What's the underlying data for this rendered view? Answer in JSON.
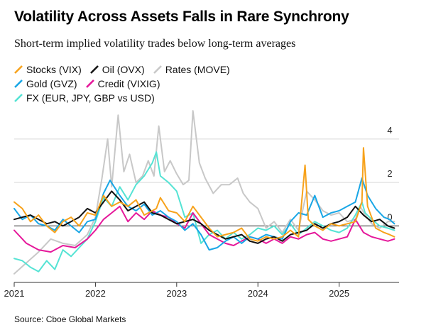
{
  "title": "Volatility Across Assets Falls in Rare Synchrony",
  "subtitle": "Short-term implied volatility trades below long-term averages",
  "source": "Source: Cboe Global Markets",
  "chart_data": {
    "type": "line",
    "xlabel": "",
    "ylabel": "",
    "xlim": [
      2021.0,
      2025.72
    ],
    "ylim": [
      -2.6,
      5.5
    ],
    "grid": true,
    "legend_position": "top-left",
    "yticks": [
      0,
      2,
      4
    ],
    "ytick_labels": [
      "0",
      "2",
      "4"
    ],
    "xticks": [
      2021,
      2022,
      2023,
      2024,
      2025
    ],
    "xtick_labels": [
      "2021",
      "2022",
      "2023",
      "2024",
      "2025"
    ],
    "series": [
      {
        "name": "Rates (MOVE)",
        "color": "#c8c8c8",
        "x": [
          2021.0,
          2021.15,
          2021.3,
          2021.45,
          2021.6,
          2021.75,
          2021.9,
          2022.0,
          2022.08,
          2022.15,
          2022.2,
          2022.28,
          2022.35,
          2022.42,
          2022.5,
          2022.58,
          2022.65,
          2022.72,
          2022.78,
          2022.85,
          2022.92,
          2023.0,
          2023.08,
          2023.15,
          2023.2,
          2023.28,
          2023.35,
          2023.45,
          2023.55,
          2023.65,
          2023.75,
          2023.82,
          2023.9,
          2024.0,
          2024.1,
          2024.2,
          2024.3,
          2024.4,
          2024.5,
          2024.6,
          2024.7,
          2024.8,
          2024.9,
          2025.0,
          2025.1,
          2025.2,
          2025.26,
          2025.32,
          2025.4,
          2025.5,
          2025.6,
          2025.68
        ],
        "values": [
          -2.2,
          -1.7,
          -1.2,
          -0.6,
          -0.8,
          -0.9,
          -0.4,
          0.4,
          2.2,
          4.0,
          1.8,
          5.1,
          2.5,
          3.3,
          2.0,
          2.3,
          3.0,
          2.3,
          4.6,
          2.5,
          3.0,
          2.4,
          1.9,
          2.1,
          5.3,
          2.9,
          2.2,
          1.5,
          1.9,
          1.9,
          2.2,
          1.5,
          1.1,
          0.8,
          -0.1,
          0.2,
          -0.3,
          0.3,
          -0.2,
          1.6,
          1.2,
          0.7,
          0.5,
          0.6,
          0.2,
          0.3,
          0.9,
          0.5,
          0.1,
          -0.1,
          0.2,
          0.2
        ]
      },
      {
        "name": "FX (EUR, JPY, GBP vs USD)",
        "color": "#55e3d4",
        "x": [
          2021.0,
          2021.1,
          2021.2,
          2021.3,
          2021.4,
          2021.5,
          2021.6,
          2021.7,
          2021.8,
          2021.9,
          2022.0,
          2022.1,
          2022.2,
          2022.3,
          2022.4,
          2022.5,
          2022.6,
          2022.7,
          2022.75,
          2022.8,
          2022.9,
          2023.0,
          2023.1,
          2023.2,
          2023.3,
          2023.4,
          2023.5,
          2023.6,
          2023.7,
          2023.8,
          2023.9,
          2024.0,
          2024.1,
          2024.2,
          2024.3,
          2024.4,
          2024.5,
          2024.6,
          2024.7,
          2024.8,
          2024.9,
          2025.0,
          2025.1,
          2025.2,
          2025.28,
          2025.32,
          2025.4,
          2025.5,
          2025.6,
          2025.68
        ],
        "values": [
          -1.5,
          -1.6,
          -1.9,
          -2.1,
          -1.6,
          -2.0,
          -1.1,
          -1.4,
          -1.0,
          -0.6,
          0.2,
          1.3,
          0.9,
          1.8,
          1.2,
          1.9,
          2.3,
          2.9,
          3.4,
          2.3,
          2.0,
          1.6,
          0.4,
          0.6,
          -0.8,
          -0.4,
          -0.2,
          -0.6,
          -0.3,
          -0.6,
          -0.4,
          -0.1,
          -0.2,
          0.0,
          -0.4,
          0.1,
          -0.4,
          -0.1,
          0.2,
          0.0,
          -0.2,
          -0.3,
          -0.1,
          0.5,
          1.1,
          0.6,
          0.3,
          0.0,
          -0.1,
          -0.2
        ]
      },
      {
        "name": "Credit (VIXIG)",
        "color": "#e5189a",
        "x": [
          2021.0,
          2021.15,
          2021.3,
          2021.45,
          2021.6,
          2021.75,
          2021.9,
          2022.0,
          2022.1,
          2022.2,
          2022.3,
          2022.4,
          2022.5,
          2022.6,
          2022.7,
          2022.8,
          2022.9,
          2023.0,
          2023.1,
          2023.2,
          2023.3,
          2023.4,
          2023.5,
          2023.6,
          2023.7,
          2023.8,
          2023.9,
          2024.0,
          2024.1,
          2024.2,
          2024.3,
          2024.4,
          2024.5,
          2024.6,
          2024.7,
          2024.8,
          2024.9,
          2025.0,
          2025.1,
          2025.2,
          2025.3,
          2025.4,
          2025.5,
          2025.6,
          2025.68
        ],
        "values": [
          -0.2,
          -0.8,
          -1.1,
          -1.2,
          -0.9,
          -1.0,
          -0.6,
          -0.2,
          0.3,
          0.6,
          0.9,
          0.2,
          0.6,
          0.3,
          0.7,
          0.5,
          0.4,
          0.1,
          -0.1,
          0.6,
          0.1,
          -0.4,
          -0.6,
          -0.8,
          -0.9,
          -0.7,
          -0.5,
          -0.6,
          -0.8,
          -0.6,
          -0.8,
          -0.5,
          -0.6,
          -0.4,
          -0.3,
          -0.6,
          -0.7,
          -0.6,
          -0.5,
          0.3,
          -0.3,
          -0.5,
          -0.6,
          -0.7,
          -0.6
        ]
      },
      {
        "name": "Gold (GVZ)",
        "color": "#18a6e6",
        "x": [
          2021.0,
          2021.1,
          2021.2,
          2021.3,
          2021.4,
          2021.5,
          2021.6,
          2021.7,
          2021.8,
          2021.9,
          2022.0,
          2022.1,
          2022.18,
          2022.3,
          2022.4,
          2022.5,
          2022.6,
          2022.7,
          2022.8,
          2022.9,
          2023.0,
          2023.1,
          2023.2,
          2023.3,
          2023.4,
          2023.5,
          2023.6,
          2023.7,
          2023.8,
          2023.9,
          2024.0,
          2024.1,
          2024.2,
          2024.3,
          2024.4,
          2024.5,
          2024.6,
          2024.7,
          2024.8,
          2024.9,
          2025.0,
          2025.1,
          2025.2,
          2025.28,
          2025.35,
          2025.45,
          2025.55,
          2025.62,
          2025.68
        ],
        "values": [
          0.8,
          0.3,
          0.5,
          0.1,
          0.0,
          -0.2,
          0.3,
          0.0,
          -0.3,
          0.2,
          0.3,
          1.5,
          2.1,
          1.4,
          0.9,
          0.7,
          1.0,
          0.5,
          0.7,
          0.4,
          0.2,
          -0.2,
          0.1,
          -0.4,
          -1.1,
          -1.0,
          -0.7,
          -0.5,
          -0.8,
          -0.5,
          -0.6,
          -0.4,
          -0.5,
          -0.6,
          0.2,
          0.6,
          0.5,
          1.4,
          0.4,
          0.6,
          0.7,
          0.9,
          1.1,
          2.2,
          1.4,
          0.8,
          0.4,
          0.3,
          0.1
        ]
      },
      {
        "name": "Oil (OVX)",
        "color": "#111111",
        "x": [
          2021.0,
          2021.1,
          2021.2,
          2021.3,
          2021.4,
          2021.5,
          2021.6,
          2021.7,
          2021.8,
          2021.9,
          2022.0,
          2022.1,
          2022.2,
          2022.3,
          2022.4,
          2022.5,
          2022.6,
          2022.7,
          2022.8,
          2022.9,
          2023.0,
          2023.1,
          2023.2,
          2023.3,
          2023.4,
          2023.5,
          2023.6,
          2023.7,
          2023.8,
          2023.9,
          2024.0,
          2024.1,
          2024.2,
          2024.3,
          2024.4,
          2024.5,
          2024.6,
          2024.7,
          2024.8,
          2024.9,
          2025.0,
          2025.1,
          2025.2,
          2025.3,
          2025.4,
          2025.5,
          2025.6,
          2025.68
        ],
        "values": [
          0.3,
          0.4,
          0.5,
          0.3,
          0.1,
          0.2,
          0.0,
          0.2,
          0.4,
          0.8,
          0.6,
          1.1,
          1.6,
          1.2,
          0.7,
          0.9,
          1.1,
          0.6,
          0.5,
          0.3,
          0.1,
          0.2,
          0.3,
          0.1,
          -0.2,
          -0.4,
          -0.6,
          -0.5,
          -0.4,
          -0.7,
          -0.8,
          -0.6,
          -0.5,
          -0.7,
          -0.4,
          -0.3,
          -0.2,
          0.1,
          -0.1,
          0.1,
          0.2,
          0.4,
          0.9,
          0.5,
          0.2,
          0.3,
          0.0,
          -0.1
        ]
      },
      {
        "name": "Stocks (VIX)",
        "color": "#f7a21b",
        "x": [
          2021.0,
          2021.1,
          2021.2,
          2021.3,
          2021.4,
          2021.5,
          2021.6,
          2021.7,
          2021.8,
          2021.9,
          2022.0,
          2022.1,
          2022.2,
          2022.3,
          2022.4,
          2022.5,
          2022.6,
          2022.7,
          2022.75,
          2022.8,
          2022.9,
          2023.0,
          2023.1,
          2023.2,
          2023.3,
          2023.4,
          2023.5,
          2023.6,
          2023.7,
          2023.8,
          2023.9,
          2024.0,
          2024.1,
          2024.2,
          2024.3,
          2024.4,
          2024.5,
          2024.58,
          2024.62,
          2024.7,
          2024.8,
          2024.9,
          2025.0,
          2025.1,
          2025.2,
          2025.28,
          2025.3,
          2025.35,
          2025.45,
          2025.55,
          2025.62,
          2025.68
        ],
        "values": [
          1.1,
          0.8,
          0.2,
          0.5,
          0.0,
          -0.3,
          0.2,
          0.4,
          0.0,
          0.6,
          0.5,
          1.4,
          0.9,
          1.1,
          0.9,
          1.2,
          0.5,
          0.7,
          0.8,
          1.3,
          0.7,
          0.6,
          0.2,
          0.9,
          0.4,
          -0.1,
          -0.5,
          -0.4,
          -0.3,
          -0.1,
          -0.6,
          -0.7,
          -0.5,
          -0.6,
          -0.5,
          -0.2,
          -0.5,
          2.8,
          0.3,
          0.0,
          -0.2,
          0.1,
          0.0,
          0.1,
          0.2,
          1.1,
          3.6,
          0.9,
          -0.1,
          -0.3,
          -0.4,
          -0.5
        ]
      }
    ]
  },
  "legend": [
    {
      "label": "Stocks (VIX)",
      "color": "#f7a21b"
    },
    {
      "label": "Oil (OVX)",
      "color": "#111111"
    },
    {
      "label": "Rates (MOVE)",
      "color": "#c8c8c8"
    },
    {
      "label": "Gold (GVZ)",
      "color": "#18a6e6"
    },
    {
      "label": "Credit (VIXIG)",
      "color": "#e5189a"
    },
    {
      "label": "FX (EUR, JPY, GBP vs USD)",
      "color": "#55e3d4"
    }
  ]
}
